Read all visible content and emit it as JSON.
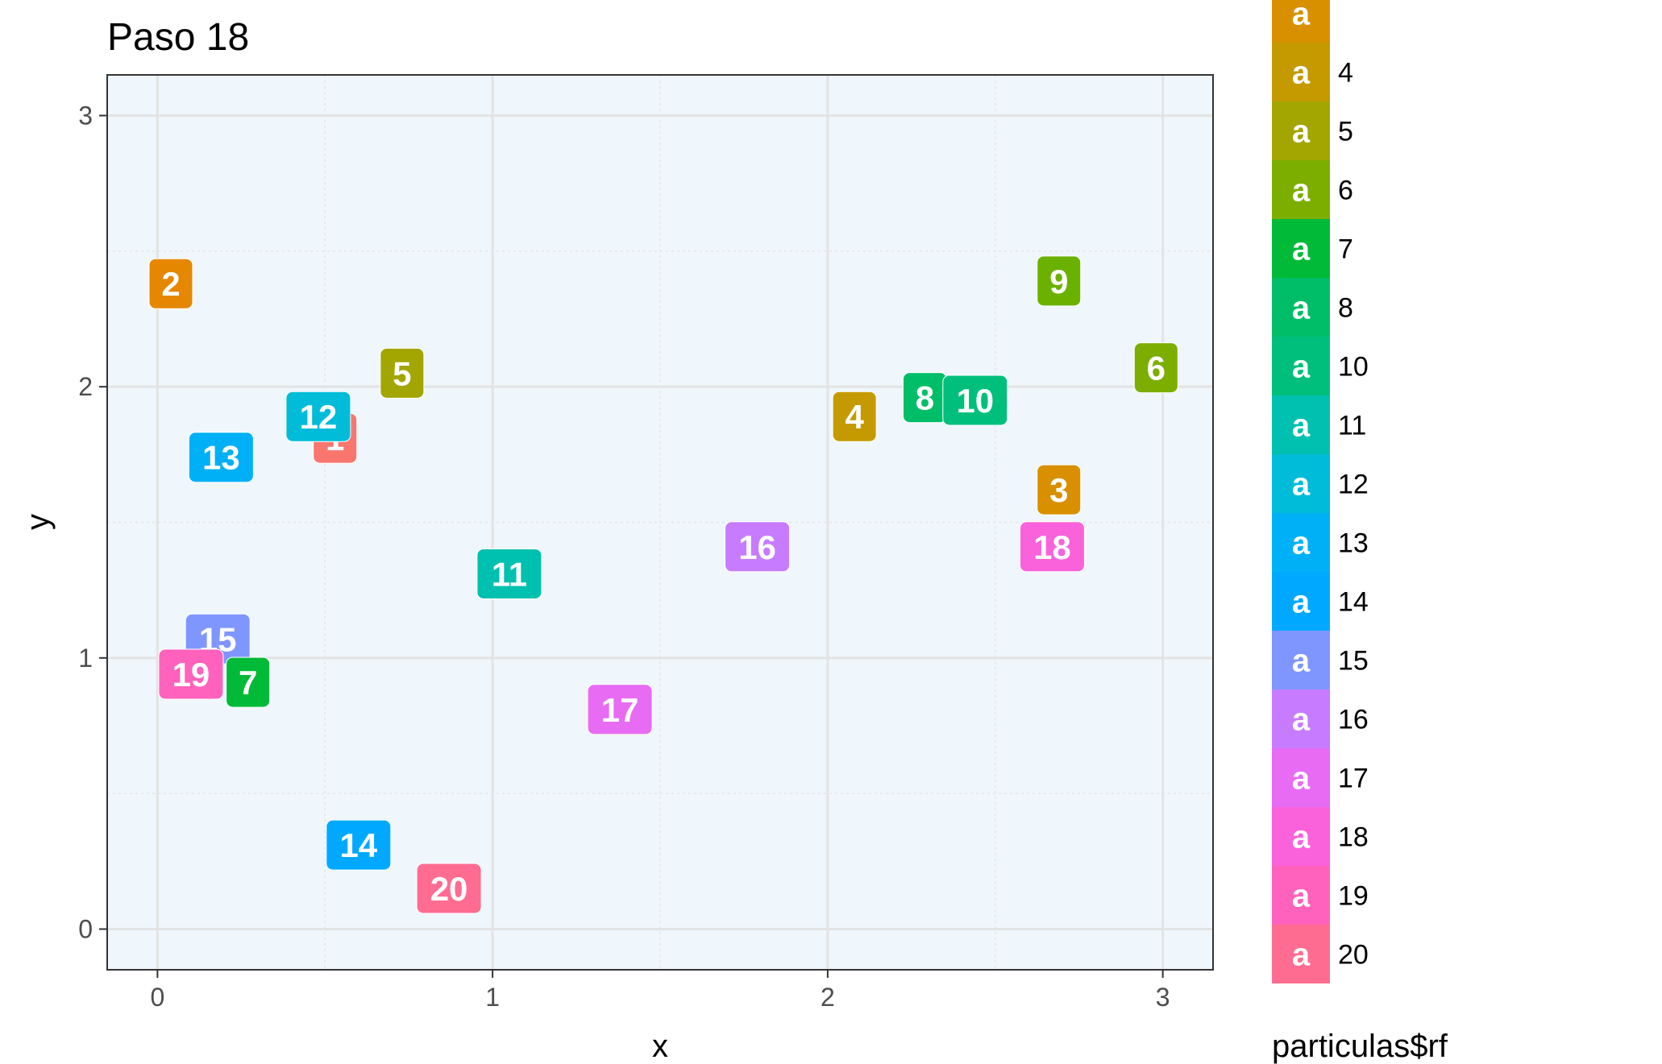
{
  "chart_data": {
    "type": "scatter",
    "title": "Paso 18",
    "xlabel": "x",
    "ylabel": "y",
    "xlim": [
      -0.15,
      3.15
    ],
    "ylim": [
      -0.15,
      3.15
    ],
    "x_ticks": [
      "0",
      "1",
      "2",
      "3"
    ],
    "y_ticks": [
      "0",
      "1",
      "2",
      "3"
    ],
    "grid": true,
    "panel_background": "#eff6fc",
    "legend": {
      "title": "particulas$rf",
      "position": "right",
      "key_glyph": "a",
      "entries": [
        {
          "label": "",
          "color": "#d89000"
        },
        {
          "label": "4",
          "color": "#c49a00"
        },
        {
          "label": "5",
          "color": "#a3a500"
        },
        {
          "label": "6",
          "color": "#7cae00"
        },
        {
          "label": "7",
          "color": "#00ba38"
        },
        {
          "label": "8",
          "color": "#00be67"
        },
        {
          "label": "10",
          "color": "#00bf7d"
        },
        {
          "label": "11",
          "color": "#00c0af"
        },
        {
          "label": "12",
          "color": "#00bcd8"
        },
        {
          "label": "13",
          "color": "#00b0f6"
        },
        {
          "label": "14",
          "color": "#00a9ff"
        },
        {
          "label": "15",
          "color": "#7f96ff"
        },
        {
          "label": "16",
          "color": "#c77cff"
        },
        {
          "label": "17",
          "color": "#e76bf3"
        },
        {
          "label": "18",
          "color": "#fa62db"
        },
        {
          "label": "19",
          "color": "#ff62bc"
        },
        {
          "label": "20",
          "color": "#ff6c91"
        }
      ]
    },
    "points": [
      {
        "label": "1",
        "x": 0.53,
        "y": 1.81,
        "color": "#f8766d"
      },
      {
        "label": "2",
        "x": 0.04,
        "y": 2.38,
        "color": "#e58700"
      },
      {
        "label": "3",
        "x": 2.69,
        "y": 1.62,
        "color": "#d89000"
      },
      {
        "label": "4",
        "x": 2.08,
        "y": 1.89,
        "color": "#c49a00"
      },
      {
        "label": "5",
        "x": 0.73,
        "y": 2.05,
        "color": "#a3a500"
      },
      {
        "label": "6",
        "x": 2.98,
        "y": 2.07,
        "color": "#7cae00"
      },
      {
        "label": "9",
        "x": 2.69,
        "y": 2.39,
        "color": "#6bb100"
      },
      {
        "label": "12",
        "x": 0.48,
        "y": 1.89,
        "color": "#00bcd8"
      },
      {
        "label": "13",
        "x": 0.19,
        "y": 1.74,
        "color": "#00b0f6"
      },
      {
        "label": "8",
        "x": 2.29,
        "y": 1.96,
        "color": "#00be67"
      },
      {
        "label": "10",
        "x": 2.44,
        "y": 1.95,
        "color": "#00bf7d"
      },
      {
        "label": "16",
        "x": 1.79,
        "y": 1.41,
        "color": "#c77cff"
      },
      {
        "label": "18",
        "x": 2.67,
        "y": 1.41,
        "color": "#fa62db"
      },
      {
        "label": "11",
        "x": 1.05,
        "y": 1.31,
        "color": "#00c0af"
      },
      {
        "label": "15",
        "x": 0.18,
        "y": 1.07,
        "color": "#7f96ff"
      },
      {
        "label": "7",
        "x": 0.27,
        "y": 0.91,
        "color": "#00ba38"
      },
      {
        "label": "19",
        "x": 0.1,
        "y": 0.94,
        "color": "#ff62bc"
      },
      {
        "label": "17",
        "x": 1.38,
        "y": 0.81,
        "color": "#e76bf3"
      },
      {
        "label": "14",
        "x": 0.6,
        "y": 0.31,
        "color": "#00a9ff"
      },
      {
        "label": "20",
        "x": 0.87,
        "y": 0.15,
        "color": "#ff6c91"
      }
    ]
  }
}
